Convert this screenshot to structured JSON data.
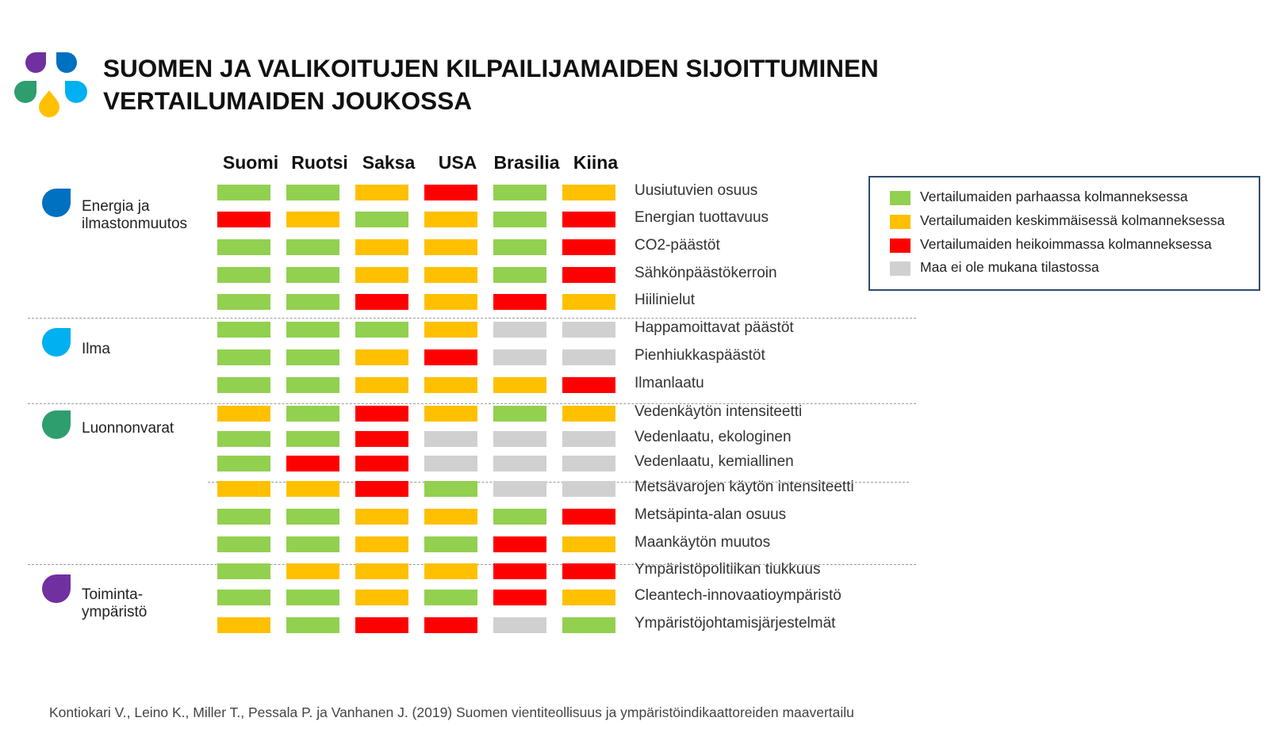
{
  "title": {
    "line1": "SUOMEN JA VALIKOITUJEN KILPAILIJAMAIDEN SIJOITTUMINEN",
    "line2": "VERTAILUMAIDEN JOUKOSSA"
  },
  "colors": {
    "good": "#92d050",
    "medium": "#ffc000",
    "weak": "#ff0000",
    "na": "#d0d0d0",
    "logo": [
      "#7030a0",
      "#0070c0",
      "#2e9e6e",
      "#00b0f0",
      "#ffc000"
    ],
    "groups": [
      "#0070c0",
      "#00b0f0",
      "#2e9e6e",
      "#7030a0"
    ]
  },
  "chart_data": {
    "type": "table",
    "columns": [
      "Suomi",
      "Ruotsi",
      "Saksa",
      "USA",
      "Brasilia",
      "Kiina"
    ],
    "groups": [
      {
        "label": "Energia ja\nilmastonmuutos",
        "icon": "drop-icon-energy"
      },
      {
        "label": "Ilma",
        "icon": "drop-icon-air"
      },
      {
        "label": "Luonnonvarat",
        "icon": "drop-icon-resources"
      },
      {
        "label": "Toiminta-\nympäristö",
        "icon": "drop-icon-environment"
      }
    ],
    "rows": [
      {
        "label": "Uusiutuvien osuus",
        "values": [
          "good",
          "good",
          "medium",
          "weak",
          "good",
          "medium"
        ]
      },
      {
        "label": "Energian tuottavuus",
        "values": [
          "weak",
          "medium",
          "good",
          "medium",
          "good",
          "weak"
        ]
      },
      {
        "label": "CO2-päästöt",
        "values": [
          "good",
          "good",
          "medium",
          "medium",
          "good",
          "weak"
        ]
      },
      {
        "label": "Sähkönpäästökerroin",
        "values": [
          "good",
          "good",
          "medium",
          "medium",
          "good",
          "weak"
        ]
      },
      {
        "label": "Hiilinielut",
        "values": [
          "good",
          "good",
          "weak",
          "medium",
          "weak",
          "medium"
        ]
      },
      {
        "label": "Happamoittavat päästöt",
        "values": [
          "good",
          "good",
          "good",
          "medium",
          "na",
          "na"
        ]
      },
      {
        "label": "Pienhiukkaspäästöt",
        "values": [
          "good",
          "good",
          "medium",
          "weak",
          "na",
          "na"
        ]
      },
      {
        "label": "Ilmanlaatu",
        "values": [
          "good",
          "good",
          "medium",
          "medium",
          "medium",
          "weak"
        ]
      },
      {
        "label": "Vedenkäytön intensiteetti",
        "values": [
          "medium",
          "good",
          "weak",
          "medium",
          "good",
          "medium"
        ]
      },
      {
        "label": "Vedenlaatu, ekologinen",
        "values": [
          "good",
          "good",
          "weak",
          "na",
          "na",
          "na"
        ]
      },
      {
        "label": "Vedenlaatu, kemiallinen",
        "values": [
          "good",
          "weak",
          "weak",
          "na",
          "na",
          "na"
        ]
      },
      {
        "label": "Metsävarojen käytön intensiteetti",
        "values": [
          "medium",
          "medium",
          "weak",
          "good",
          "na",
          "na"
        ]
      },
      {
        "label": "Metsäpinta-alan osuus",
        "values": [
          "good",
          "good",
          "medium",
          "medium",
          "good",
          "weak"
        ]
      },
      {
        "label": "Maankäytön muutos",
        "values": [
          "good",
          "good",
          "medium",
          "good",
          "weak",
          "medium"
        ]
      },
      {
        "label": "Ympäristöpolitiikan tiukkuus",
        "values": [
          "good",
          "medium",
          "medium",
          "medium",
          "weak",
          "weak"
        ]
      },
      {
        "label": "Cleantech-innovaatioympäristö",
        "values": [
          "good",
          "good",
          "medium",
          "good",
          "weak",
          "medium"
        ]
      },
      {
        "label": "Ympäristöjohtamisjärjestelmät",
        "values": [
          "medium",
          "good",
          "weak",
          "weak",
          "na",
          "good"
        ]
      }
    ],
    "legend": [
      {
        "key": "good",
        "label": "Vertailumaiden parhaassa kolmanneksessa"
      },
      {
        "key": "medium",
        "label": "Vertailumaiden keskimmäisessä kolmanneksessa"
      },
      {
        "key": "weak",
        "label": "Vertailumaiden heikoimmassa kolmanneksessa"
      },
      {
        "key": "na",
        "label": "Maa ei ole mukana tilastossa"
      }
    ]
  },
  "source": "Kontiokari V., Leino K., Miller T., Pessala P. ja Vanhanen J. (2019) Suomen vientiteollisuus ja ympäristöindikaattoreiden maavertailu"
}
